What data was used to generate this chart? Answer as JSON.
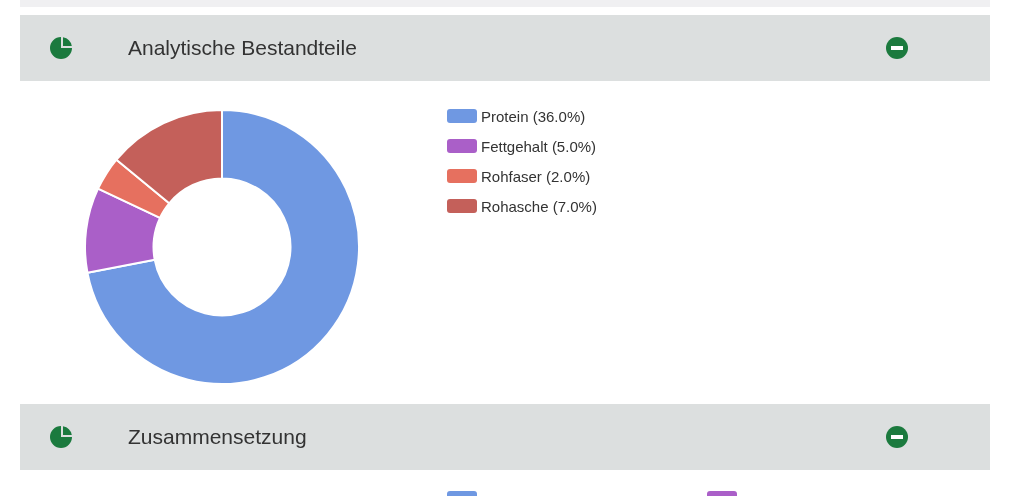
{
  "chart_data": {
    "type": "donut",
    "title": "Analytische Bestandteile",
    "categories": [
      "Protein (36.0%)",
      "Fettgehalt (5.0%)",
      "Rohfaser (2.0%)",
      "Rohasche (7.0%)"
    ],
    "values": [
      36,
      5,
      2,
      7
    ],
    "colors": [
      "#6f98e2",
      "#aa5fc8",
      "#e6705f",
      "#c4605a"
    ],
    "legend": "right",
    "annotations": [
      "Zusammensetzung"
    ]
  }
}
